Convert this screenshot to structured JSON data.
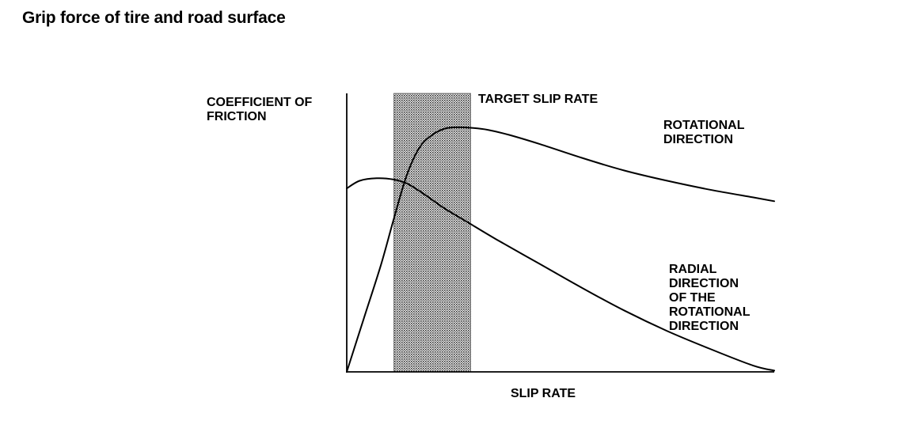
{
  "page": {
    "title": "Grip force of tire and road surface"
  },
  "chart_data": {
    "type": "line",
    "title": "Grip force of tire and road surface",
    "ylabel": [
      "COEFFICIENT OF",
      "FRICTION"
    ],
    "xlabel": "SLIP RATE",
    "grid": false,
    "axis_ticks": "none",
    "x_units": "relative slip rate (0 to 1)",
    "y_units": "relative coefficient of friction (0 to 1)",
    "xlim": [
      0,
      1
    ],
    "ylim": [
      0,
      1
    ],
    "target_band": {
      "label": "TARGET SLIP RATE",
      "x_range": [
        0.11,
        0.29
      ]
    },
    "series": [
      {
        "name": [
          "ROTATIONAL",
          "DIRECTION"
        ],
        "x": [
          0,
          0.04,
          0.08,
          0.11,
          0.14,
          0.17,
          0.2,
          0.23,
          0.26,
          0.29,
          0.33,
          0.38,
          0.45,
          0.55,
          0.65,
          0.75,
          0.85,
          0.95,
          1.0
        ],
        "y": [
          0,
          0.21,
          0.42,
          0.6,
          0.77,
          0.88,
          0.93,
          0.955,
          0.96,
          0.958,
          0.95,
          0.93,
          0.895,
          0.84,
          0.79,
          0.75,
          0.715,
          0.685,
          0.67
        ]
      },
      {
        "name": [
          "RADIAL",
          "DIRECTION",
          "OF THE",
          "ROTATIONAL",
          "DIRECTION"
        ],
        "x": [
          0,
          0.03,
          0.07,
          0.11,
          0.14,
          0.17,
          0.2,
          0.23,
          0.26,
          0.29,
          0.35,
          0.45,
          0.55,
          0.65,
          0.75,
          0.85,
          0.95,
          1.0
        ],
        "y": [
          0.72,
          0.75,
          0.76,
          0.755,
          0.74,
          0.71,
          0.675,
          0.64,
          0.61,
          0.58,
          0.52,
          0.425,
          0.33,
          0.24,
          0.16,
          0.09,
          0.025,
          0.005
        ]
      }
    ]
  }
}
